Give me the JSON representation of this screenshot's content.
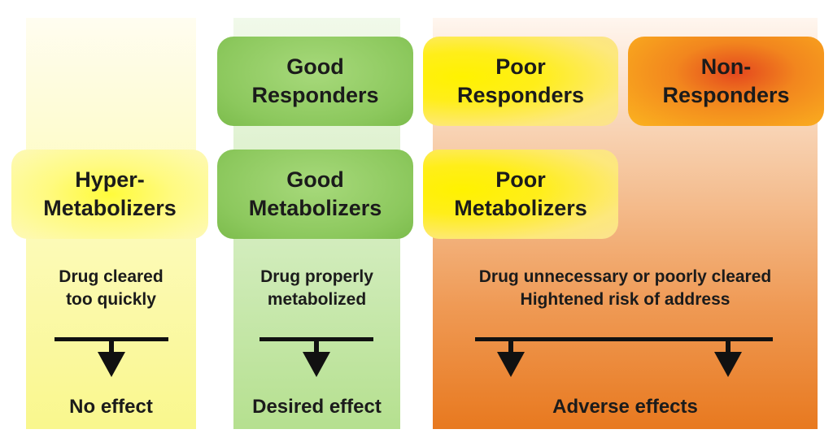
{
  "columns": {
    "hyper": {
      "metabolizer": "Hyper-\nMetabolizers",
      "description": "Drug cleared\ntoo quickly",
      "effect": "No effect",
      "color": "#f9f78d"
    },
    "good": {
      "responder": "Good\nResponders",
      "metabolizer": "Good\nMetabolizers",
      "description": "Drug properly\nmetabolized",
      "effect": "Desired effect",
      "color": "#8cc85d"
    },
    "poor": {
      "responder": "Poor\nResponders",
      "non_responder": "Non-\nResponders",
      "metabolizer": "Poor\nMetabolizers",
      "description": "Drug unnecessary or poorly cleared\nHightened risk of address",
      "effect": "Adverse effects",
      "color": "#e8791f"
    }
  }
}
